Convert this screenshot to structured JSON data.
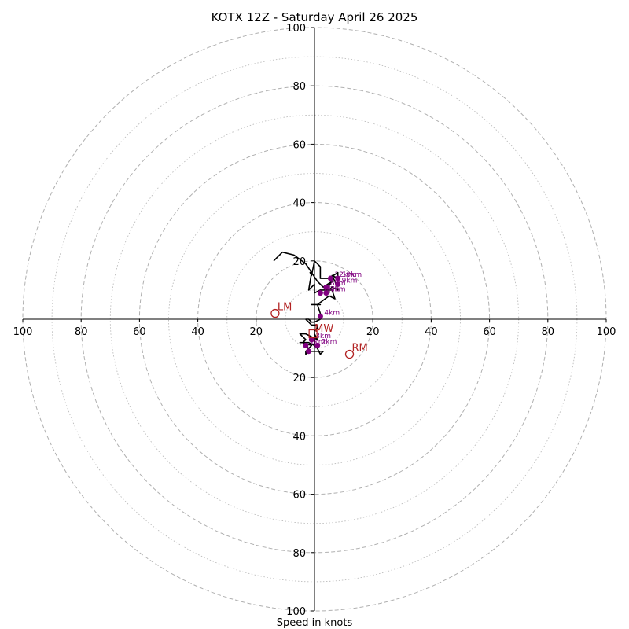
{
  "chart_data": {
    "type": "hodograph",
    "title": "KOTX 12Z - Saturday April 26 2025",
    "xlabel": "Speed in knots",
    "axis_range": [
      -100,
      100
    ],
    "tick_values": [
      -100,
      -80,
      -60,
      -40,
      -20,
      20,
      40,
      60,
      80,
      100
    ],
    "tick_labels": [
      "100",
      "80",
      "60",
      "40",
      "20",
      "20",
      "40",
      "60",
      "80",
      "100"
    ],
    "rings_major": [
      20,
      40,
      60,
      80,
      100
    ],
    "rings_minor": [
      10,
      30,
      50,
      70,
      90
    ],
    "trace": {
      "color": "#000000",
      "points": [
        [
          -14,
          20
        ],
        [
          -11,
          23
        ],
        [
          -7,
          22
        ],
        [
          -3,
          19
        ],
        [
          -1,
          16
        ],
        [
          -1.5,
          16
        ],
        [
          -1,
          15
        ],
        [
          0,
          20
        ],
        [
          2,
          18
        ],
        [
          2,
          14
        ],
        [
          5,
          14
        ],
        [
          8,
          16
        ],
        [
          8,
          14
        ],
        [
          6,
          15
        ],
        [
          7,
          13
        ],
        [
          8,
          10
        ],
        [
          6,
          11
        ],
        [
          5,
          10
        ],
        [
          5,
          9
        ],
        [
          4,
          10
        ],
        [
          6,
          13
        ],
        [
          3,
          11
        ],
        [
          1,
          13
        ],
        [
          -1,
          16
        ],
        [
          -2,
          10
        ],
        [
          0,
          12
        ],
        [
          0,
          9
        ],
        [
          2,
          10
        ],
        [
          6,
          10
        ],
        [
          7,
          7
        ],
        [
          5,
          8
        ],
        [
          1,
          5
        ],
        [
          2,
          5
        ],
        [
          0,
          5
        ],
        [
          -1,
          5
        ],
        [
          1,
          5
        ],
        [
          2,
          2
        ],
        [
          2,
          0
        ],
        [
          0,
          -1
        ],
        [
          -1,
          -1
        ],
        [
          -2,
          0
        ],
        [
          -3,
          0
        ],
        [
          -1,
          -2
        ],
        [
          1,
          -2
        ],
        [
          1,
          -3
        ],
        [
          0,
          -4
        ],
        [
          0,
          -5
        ],
        [
          1,
          -7
        ],
        [
          -1,
          -6
        ],
        [
          -3,
          -5
        ],
        [
          -5,
          -5
        ],
        [
          -3,
          -7
        ],
        [
          -4,
          -8
        ],
        [
          -3,
          -9
        ],
        [
          -2,
          -10
        ],
        [
          -1,
          -9
        ],
        [
          -4,
          -8
        ],
        [
          -5,
          -8
        ],
        [
          -2,
          -8
        ],
        [
          0,
          -9
        ],
        [
          1,
          -10
        ],
        [
          2,
          -12
        ],
        [
          3,
          -11
        ],
        [
          -2,
          -11
        ],
        [
          -3,
          -12
        ],
        [
          -3,
          -11
        ],
        [
          -2,
          -10
        ]
      ]
    },
    "height_markers": {
      "color": "#800080",
      "points": [
        {
          "label": "10km",
          "x": 8,
          "y": 14
        },
        {
          "label": "12km",
          "x": 5.5,
          "y": 14
        },
        {
          "label": "9km",
          "x": 8,
          "y": 12
        },
        {
          "label": "8km",
          "x": 4,
          "y": 11
        },
        {
          "label": "7km",
          "x": 4,
          "y": 9
        },
        {
          "label": "6km",
          "x": 2,
          "y": 9
        },
        {
          "label": "4km",
          "x": 2,
          "y": 1
        },
        {
          "label": "3km",
          "x": -1,
          "y": -7
        },
        {
          "label": "2km",
          "x": 1,
          "y": -9
        },
        {
          "label": "1km",
          "x": -3,
          "y": -9
        },
        {
          "label": "",
          "x": -2,
          "y": -11
        }
      ]
    },
    "motion_markers": [
      {
        "label": "LM",
        "x": -13.5,
        "y": 2,
        "color": "#b22222"
      },
      {
        "label": "RM",
        "x": 12,
        "y": -12,
        "color": "#b22222"
      },
      {
        "label": "MW",
        "x": -0.5,
        "y": -5,
        "color": "#b22222"
      }
    ],
    "grid": true
  }
}
